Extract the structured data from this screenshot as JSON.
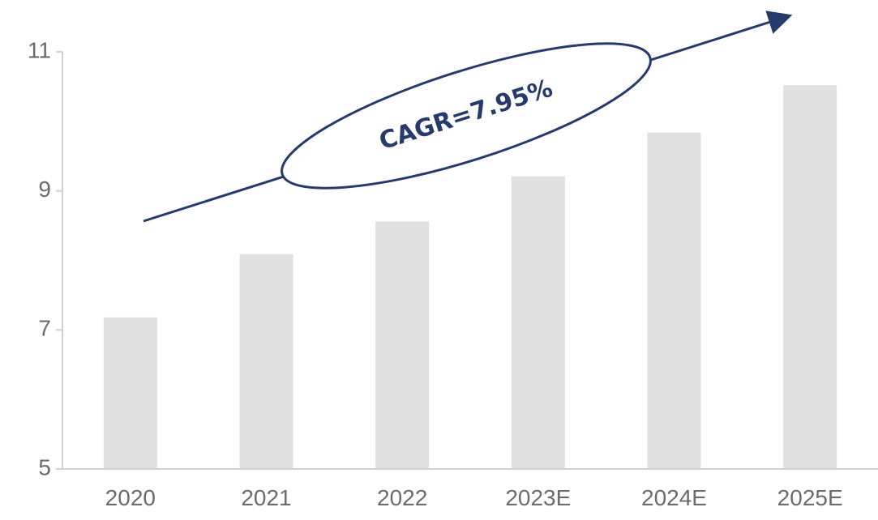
{
  "chart_data": {
    "type": "bar",
    "title": "",
    "xlabel": "",
    "ylabel": "",
    "categories": [
      "2020",
      "2021",
      "2022",
      "2023E",
      "2024E",
      "2025E"
    ],
    "values": [
      7.18,
      8.09,
      8.56,
      9.21,
      9.84,
      10.52
    ],
    "ylim": [
      5,
      11
    ],
    "yticks": [
      "5",
      "7",
      "9",
      "11"
    ],
    "grid": false,
    "bar_color": "#e0e0e0",
    "annotation": {
      "text": "CAGR=7.95%",
      "color": "#263a6b"
    }
  }
}
